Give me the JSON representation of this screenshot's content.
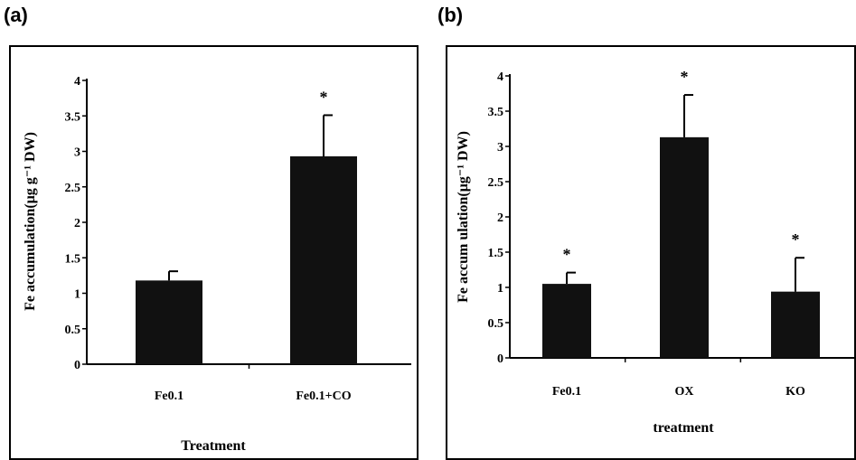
{
  "chart_data": [
    {
      "panel": "(a)",
      "type": "bar",
      "categories": [
        "Fe0.1",
        "Fe0.1+CO"
      ],
      "values": [
        1.18,
        2.93
      ],
      "errors": [
        0.13,
        0.58
      ],
      "significance": [
        "",
        "*"
      ],
      "xlabel": "Treatment",
      "ylabel": "Fe accumulation(μg g⁻¹ DW)",
      "ylim": [
        0,
        4
      ],
      "yticks": [
        "0",
        "0.5",
        "1",
        "1.5",
        "2",
        "2.5",
        "3",
        "3.5",
        "4"
      ],
      "grid": false,
      "bar_color": "#111111"
    },
    {
      "panel": "(b)",
      "type": "bar",
      "categories": [
        "Fe0.1",
        "OX",
        "KO"
      ],
      "values": [
        1.05,
        3.13,
        0.94
      ],
      "errors": [
        0.16,
        0.6,
        0.48
      ],
      "significance": [
        "*",
        "*",
        "*"
      ],
      "xlabel": "treatment",
      "ylabel": "Fe accum ulation(μg⁻¹ DW)",
      "ylim": [
        0,
        4
      ],
      "yticks": [
        "0",
        "0.5",
        "1",
        "1.5",
        "2",
        "2.5",
        "3",
        "3.5",
        "4"
      ],
      "grid": false,
      "bar_color": "#111111"
    }
  ]
}
